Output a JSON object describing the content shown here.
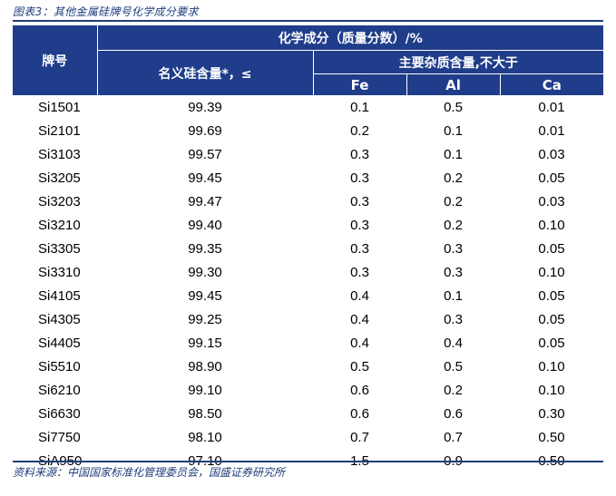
{
  "caption": "图表3：其他金属硅牌号化学成分要求",
  "table": {
    "header": {
      "grade": "牌号",
      "composition": "化学成分（质量分数）/%",
      "silicon": "名义硅含量*，≤",
      "impurities": "主要杂质含量,不大于",
      "fe": "Fe",
      "al": "Al",
      "ca": "Ca"
    },
    "rows": [
      [
        "Si1501",
        "99.39",
        "0.1",
        "0.5",
        "0.01"
      ],
      [
        "Si2101",
        "99.69",
        "0.2",
        "0.1",
        "0.01"
      ],
      [
        "Si3103",
        "99.57",
        "0.3",
        "0.1",
        "0.03"
      ],
      [
        "Si3205",
        "99.45",
        "0.3",
        "0.2",
        "0.05"
      ],
      [
        "Si3203",
        "99.47",
        "0.3",
        "0.2",
        "0.03"
      ],
      [
        "Si3210",
        "99.40",
        "0.3",
        "0.2",
        "0.10"
      ],
      [
        "Si3305",
        "99.35",
        "0.3",
        "0.3",
        "0.05"
      ],
      [
        "Si3310",
        "99.30",
        "0.3",
        "0.3",
        "0.10"
      ],
      [
        "Si4105",
        "99.45",
        "0.4",
        "0.1",
        "0.05"
      ],
      [
        "Si4305",
        "99.25",
        "0.4",
        "0.3",
        "0.05"
      ],
      [
        "Si4405",
        "99.15",
        "0.4",
        "0.4",
        "0.05"
      ],
      [
        "Si5510",
        "98.90",
        "0.5",
        "0.5",
        "0.10"
      ],
      [
        "Si6210",
        "99.10",
        "0.6",
        "0.2",
        "0.10"
      ],
      [
        "Si6630",
        "98.50",
        "0.6",
        "0.6",
        "0.30"
      ],
      [
        "Si7750",
        "98.10",
        "0.7",
        "0.7",
        "0.50"
      ],
      [
        "SiA950",
        "97.10",
        "1.5",
        "0.9",
        "0.50"
      ]
    ]
  },
  "source": "资料来源：中国国家标准化管理委员会，国盛证券研究所",
  "colors": {
    "header_bg": "#1f3d8a",
    "rule": "#1f3d7a",
    "caption_text": "#1f3d7a"
  }
}
